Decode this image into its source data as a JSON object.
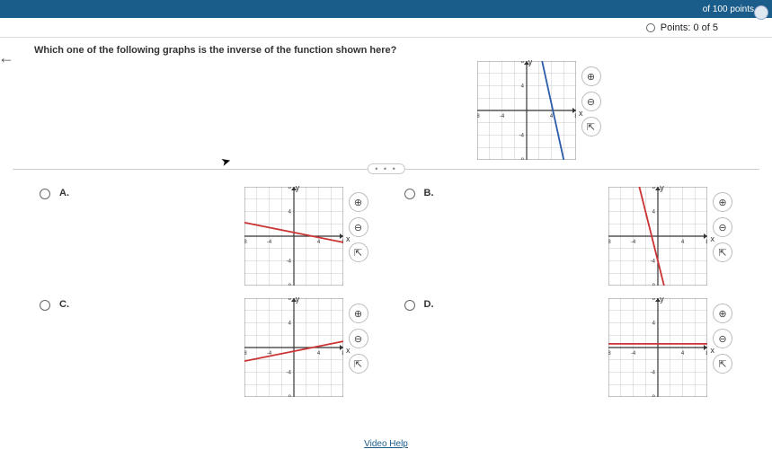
{
  "topbar": {
    "right_text": "of 100 points"
  },
  "points": {
    "label": "Points: 0 of 5"
  },
  "question": {
    "text": "Which one of the following graphs is the inverse of the function shown here?"
  },
  "main_graph": {
    "xlim": [
      -8,
      8
    ],
    "ylim": [
      -8,
      8
    ],
    "tick_step": 4,
    "line_color": "#2a5caa",
    "line": {
      "x1": 2.5,
      "y1": 8,
      "x2": 6,
      "y2": -8
    },
    "background": "#ffffff",
    "grid_color": "#c8c8c8"
  },
  "tool_icons": {
    "zoom_in": "⊕",
    "zoom_out": "⊖",
    "popout": "⇱"
  },
  "expand": {
    "dots": "• • •"
  },
  "choices": {
    "A": {
      "label": "A.",
      "graph": {
        "xlim": [
          -8,
          8
        ],
        "ylim": [
          -8,
          8
        ],
        "line_color": "#cc3333",
        "line": {
          "x1": -8,
          "y1": 2.2,
          "x2": 8,
          "y2": -1
        },
        "background": "#ffffff",
        "grid_color": "#c8c8c8"
      }
    },
    "B": {
      "label": "B.",
      "graph": {
        "xlim": [
          -8,
          8
        ],
        "ylim": [
          -8,
          8
        ],
        "line_color": "#cc3333",
        "line": {
          "x1": -3,
          "y1": 8,
          "x2": 1,
          "y2": -8
        },
        "background": "#ffffff",
        "grid_color": "#c8c8c8"
      }
    },
    "C": {
      "label": "C.",
      "graph": {
        "xlim": [
          -8,
          8
        ],
        "ylim": [
          -8,
          8
        ],
        "line_color": "#cc3333",
        "line": {
          "x1": -8,
          "y1": -2.2,
          "x2": 8,
          "y2": 1
        },
        "background": "#ffffff",
        "grid_color": "#c8c8c8"
      }
    },
    "D": {
      "label": "D.",
      "graph": {
        "xlim": [
          -8,
          8
        ],
        "ylim": [
          -8,
          8
        ],
        "line_color": "#cc3333",
        "line": {
          "x1": -8,
          "y1": 0.6,
          "x2": 8,
          "y2": 0.6
        },
        "background": "#ffffff",
        "grid_color": "#c8c8c8"
      }
    }
  },
  "axis": {
    "y_label": "y",
    "x_label": "x",
    "tick_neg8": "-8",
    "tick_neg4": "-4",
    "tick_4": "4",
    "tick_8": "8"
  },
  "footer": {
    "link": "Video Help"
  }
}
